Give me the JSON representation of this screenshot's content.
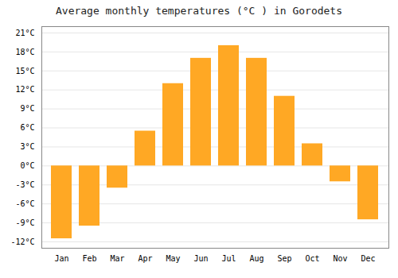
{
  "chart_data": {
    "type": "bar",
    "title": "Average monthly temperatures (°C ) in Gorodets",
    "categories": [
      "Jan",
      "Feb",
      "Mar",
      "Apr",
      "May",
      "Jun",
      "Jul",
      "Aug",
      "Sep",
      "Oct",
      "Nov",
      "Dec"
    ],
    "values": [
      -11.5,
      -9.5,
      -3.5,
      5.5,
      13.0,
      17.0,
      19.0,
      17.0,
      11.0,
      3.5,
      -2.5,
      -8.5
    ],
    "color": "#FFA824",
    "ylim": [
      -13,
      22
    ],
    "yticks": [
      {
        "value": -12,
        "label": "-12°C"
      },
      {
        "value": -9,
        "label": "-9°C"
      },
      {
        "value": -6,
        "label": "-6°C"
      },
      {
        "value": -3,
        "label": "-3°C"
      },
      {
        "value": 0,
        "label": "0°C"
      },
      {
        "value": 3,
        "label": "3°C"
      },
      {
        "value": 6,
        "label": "6°C"
      },
      {
        "value": 9,
        "label": "9°C"
      },
      {
        "value": 12,
        "label": "12°C"
      },
      {
        "value": 15,
        "label": "15°C"
      },
      {
        "value": 18,
        "label": "18°C"
      },
      {
        "value": 21,
        "label": "21°C"
      }
    ],
    "grid": true
  }
}
